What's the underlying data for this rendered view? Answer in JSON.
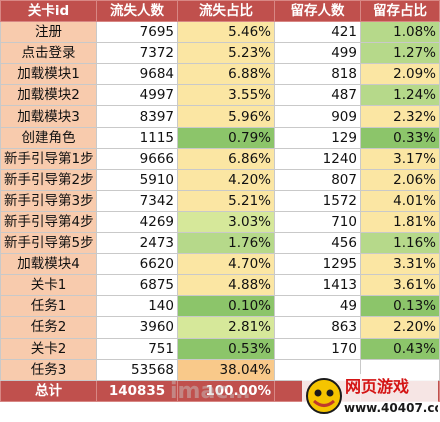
{
  "table": {
    "headers": [
      "关卡id",
      "流失人数",
      "流失占比",
      "留存人数",
      "留存占比"
    ],
    "rows": [
      {
        "name": "注册",
        "lost": "7695",
        "lost_pct": "5.46%",
        "retained": "421",
        "retained_pct": "1.08%",
        "lost_pct_color": "#fbe6a3",
        "retained_pct_color": "#b6d98a"
      },
      {
        "name": "点击登录",
        "lost": "7372",
        "lost_pct": "5.23%",
        "retained": "499",
        "retained_pct": "1.27%",
        "lost_pct_color": "#fbe6a3",
        "retained_pct_color": "#b6d98a"
      },
      {
        "name": "加载模块1",
        "lost": "9684",
        "lost_pct": "6.88%",
        "retained": "818",
        "retained_pct": "2.09%",
        "lost_pct_color": "#fbe6a3",
        "retained_pct_color": "#fbe6a3"
      },
      {
        "name": "加载模块2",
        "lost": "4997",
        "lost_pct": "3.55%",
        "retained": "487",
        "retained_pct": "1.24%",
        "lost_pct_color": "#fbe6a3",
        "retained_pct_color": "#b6d98a"
      },
      {
        "name": "加载模块3",
        "lost": "8397",
        "lost_pct": "5.96%",
        "retained": "909",
        "retained_pct": "2.32%",
        "lost_pct_color": "#fbe6a3",
        "retained_pct_color": "#fbe6a3"
      },
      {
        "name": "创建角色",
        "lost": "1115",
        "lost_pct": "0.79%",
        "retained": "129",
        "retained_pct": "0.33%",
        "lost_pct_color": "#8cc56a",
        "retained_pct_color": "#8cc56a"
      },
      {
        "name": "新手引导第1步",
        "lost": "9666",
        "lost_pct": "6.86%",
        "retained": "1240",
        "retained_pct": "3.17%",
        "lost_pct_color": "#fbe6a3",
        "retained_pct_color": "#fbe6a3"
      },
      {
        "name": "新手引导第2步",
        "lost": "5910",
        "lost_pct": "4.20%",
        "retained": "807",
        "retained_pct": "2.06%",
        "lost_pct_color": "#fbe6a3",
        "retained_pct_color": "#fbe6a3"
      },
      {
        "name": "新手引导第3步",
        "lost": "7342",
        "lost_pct": "5.21%",
        "retained": "1572",
        "retained_pct": "4.01%",
        "lost_pct_color": "#fbe6a3",
        "retained_pct_color": "#fbe6a3"
      },
      {
        "name": "新手引导第4步",
        "lost": "4269",
        "lost_pct": "3.03%",
        "retained": "710",
        "retained_pct": "1.81%",
        "lost_pct_color": "#d6e89a",
        "retained_pct_color": "#fbe6a3"
      },
      {
        "name": "新手引导第5步",
        "lost": "2473",
        "lost_pct": "1.76%",
        "retained": "456",
        "retained_pct": "1.16%",
        "lost_pct_color": "#b6d98a",
        "retained_pct_color": "#b6d98a"
      },
      {
        "name": "加载模块4",
        "lost": "6620",
        "lost_pct": "4.70%",
        "retained": "1295",
        "retained_pct": "3.31%",
        "lost_pct_color": "#fbe6a3",
        "retained_pct_color": "#fbe6a3"
      },
      {
        "name": "关卡1",
        "lost": "6875",
        "lost_pct": "4.88%",
        "retained": "1413",
        "retained_pct": "3.61%",
        "lost_pct_color": "#fbe6a3",
        "retained_pct_color": "#fbe6a3"
      },
      {
        "name": "任务1",
        "lost": "140",
        "lost_pct": "0.10%",
        "retained": "49",
        "retained_pct": "0.13%",
        "lost_pct_color": "#8cc56a",
        "retained_pct_color": "#8cc56a"
      },
      {
        "name": "任务2",
        "lost": "3960",
        "lost_pct": "2.81%",
        "retained": "863",
        "retained_pct": "2.20%",
        "lost_pct_color": "#d6e89a",
        "retained_pct_color": "#fbe6a3"
      },
      {
        "name": "关卡2",
        "lost": "751",
        "lost_pct": "0.53%",
        "retained": "170",
        "retained_pct": "0.43%",
        "lost_pct_color": "#8cc56a",
        "retained_pct_color": "#8cc56a"
      },
      {
        "name": "任务3",
        "lost": "53568",
        "lost_pct": "38.04%",
        "retained": "",
        "retained_pct": "",
        "lost_pct_color": "#f9c98a",
        "retained_pct_color": "#ffffff"
      }
    ],
    "total": {
      "name": "总计",
      "lost": "140835",
      "lost_pct": "100.00%",
      "retained": "",
      "retained_pct": ""
    }
  },
  "watermark": {
    "brand": "网页游戏",
    "site": "www.40407.com"
  }
}
